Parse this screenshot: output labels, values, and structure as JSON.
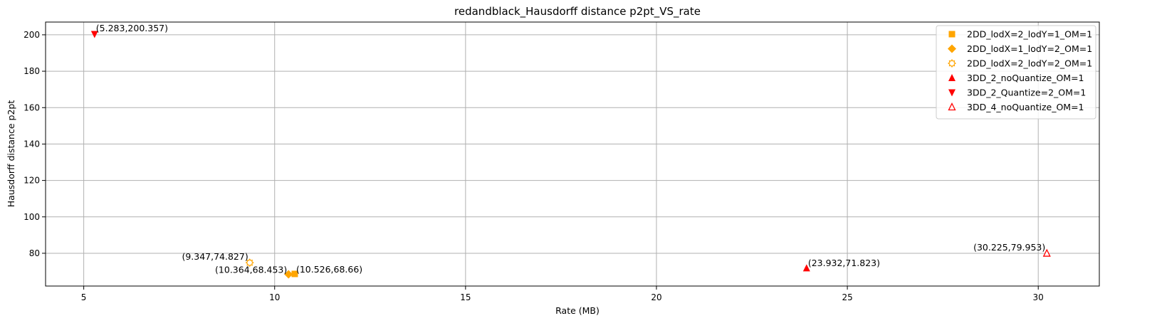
{
  "chart_data": {
    "type": "scatter",
    "title": "redandblack_Hausdorff distance p2pt_VS_rate",
    "xlabel": "Rate (MB)",
    "ylabel": "Hausdorff distance p2pt",
    "xlim": [
      4.0,
      31.6
    ],
    "ylim": [
      62.0,
      207.0
    ],
    "xticks": [
      5,
      10,
      15,
      20,
      25,
      30
    ],
    "yticks": [
      80,
      100,
      120,
      140,
      160,
      180,
      200
    ],
    "grid": true,
    "legend_position": "top-right",
    "series": [
      {
        "name": "2DD_lodX=2_lodY=1_OM=1",
        "marker": "square",
        "color": "#FFA500",
        "x": [
          10.526
        ],
        "y": [
          68.66
        ],
        "labels": [
          "(10.526,68.66)"
        ]
      },
      {
        "name": "2DD_lodX=1_lodY=2_OM=1",
        "marker": "diamond",
        "color": "#FFA500",
        "x": [
          10.364
        ],
        "y": [
          68.453
        ],
        "labels": [
          "(10.364,68.453)"
        ]
      },
      {
        "name": "2DD_lodX=2_lodY=2_OM=1",
        "marker": "gear-open",
        "color": "#FFA500",
        "x": [
          9.347
        ],
        "y": [
          74.827
        ],
        "labels": [
          "(9.347,74.827)"
        ]
      },
      {
        "name": "3DD_2_noQuantize_OM=1",
        "marker": "triangle-up",
        "color": "#FF0000",
        "x": [
          23.932
        ],
        "y": [
          71.823
        ],
        "labels": [
          "(23.932,71.823)"
        ]
      },
      {
        "name": "3DD_2_Quantize=2_OM=1",
        "marker": "triangle-down",
        "color": "#FF0000",
        "x": [
          5.283
        ],
        "y": [
          200.357
        ],
        "labels": [
          "(5.283,200.357)"
        ]
      },
      {
        "name": "3DD_4_noQuantize_OM=1",
        "marker": "triangle-up-open",
        "color": "#FF0000",
        "x": [
          30.225
        ],
        "y": [
          79.953
        ],
        "labels": [
          "(30.225,79.953)"
        ]
      }
    ]
  }
}
